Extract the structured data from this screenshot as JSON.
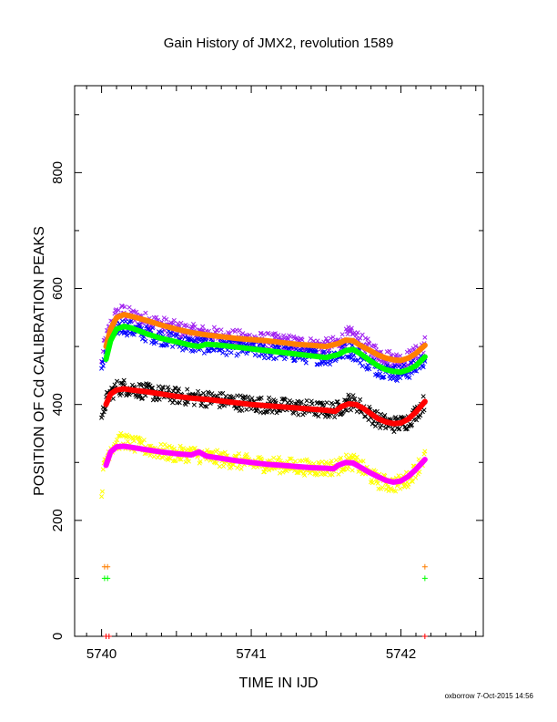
{
  "chart_data": {
    "type": "scatter",
    "title": "Gain History of JMX2, revolution 1589",
    "xlabel": "TIME IN IJD",
    "ylabel": "POSITION OF Cd CALIBRATION PEAKS",
    "xlim": [
      5739.82,
      5742.55
    ],
    "ylim": [
      0,
      950
    ],
    "x_ticks": [
      {
        "v": 5740,
        "label": "5740"
      },
      {
        "v": 5741,
        "label": "5741"
      },
      {
        "v": 5742,
        "label": "5742"
      }
    ],
    "y_ticks": [
      {
        "v": 0,
        "label": "0"
      },
      {
        "v": 200,
        "label": "200"
      },
      {
        "v": 400,
        "label": "400"
      },
      {
        "v": 600,
        "label": "600"
      },
      {
        "v": 800,
        "label": "800"
      }
    ],
    "grid": false,
    "legend": "none",
    "scatter_series": [
      {
        "color": "#a020f0",
        "marker": "x",
        "spread": 14,
        "offset": 0,
        "x": [
          5740.0,
          5740.02,
          5740.06,
          5740.1,
          5740.15,
          5740.2,
          5740.3,
          5740.4,
          5740.5,
          5740.6,
          5740.7,
          5740.8,
          5740.9,
          5741.0,
          5741.1,
          5741.2,
          5741.3,
          5741.4,
          5741.5,
          5741.58,
          5741.65,
          5741.7,
          5741.75,
          5741.8,
          5741.85,
          5741.9,
          5741.95,
          5742.0,
          5742.05,
          5742.1,
          5742.16
        ],
        "y": [
          470,
          505,
          535,
          555,
          560,
          552,
          545,
          538,
          530,
          525,
          522,
          518,
          515,
          512,
          510,
          508,
          505,
          502,
          500,
          505,
          520,
          515,
          505,
          495,
          488,
          482,
          478,
          476,
          480,
          488,
          505
        ]
      },
      {
        "color": "#0000ff",
        "marker": "x",
        "spread": 14,
        "offset": 0,
        "x": [
          5740.0,
          5740.02,
          5740.06,
          5740.1,
          5740.15,
          5740.2,
          5740.3,
          5740.4,
          5740.5,
          5740.6,
          5740.7,
          5740.8,
          5740.9,
          5741.0,
          5741.1,
          5741.2,
          5741.3,
          5741.4,
          5741.5,
          5741.58,
          5741.65,
          5741.7,
          5741.75,
          5741.8,
          5741.85,
          5741.9,
          5741.95,
          5742.0,
          5742.05,
          5742.1,
          5742.16
        ],
        "y": [
          455,
          485,
          515,
          532,
          535,
          530,
          522,
          516,
          510,
          503,
          502,
          500,
          498,
          496,
          492,
          490,
          487,
          484,
          481,
          486,
          495,
          488,
          478,
          468,
          462,
          458,
          455,
          454,
          458,
          465,
          480
        ]
      },
      {
        "color": "#000000",
        "marker": "x",
        "spread": 14,
        "offset": 0,
        "x": [
          5740.0,
          5740.02,
          5740.06,
          5740.1,
          5740.15,
          5740.2,
          5740.3,
          5740.4,
          5740.5,
          5740.6,
          5740.7,
          5740.8,
          5740.9,
          5741.0,
          5741.1,
          5741.2,
          5741.3,
          5741.4,
          5741.5,
          5741.58,
          5741.65,
          5741.7,
          5741.75,
          5741.8,
          5741.85,
          5741.9,
          5741.95,
          5742.0,
          5742.05,
          5742.1,
          5742.16
        ],
        "y": [
          365,
          400,
          420,
          428,
          430,
          427,
          422,
          418,
          415,
          412,
          410,
          407,
          404,
          401,
          399,
          397,
          395,
          393,
          390,
          392,
          405,
          402,
          392,
          382,
          373,
          368,
          366,
          367,
          372,
          385,
          405
        ]
      },
      {
        "color": "#ffff00",
        "marker": "x",
        "spread": 14,
        "offset": 0,
        "x": [
          5740.0,
          5740.02,
          5740.06,
          5740.1,
          5740.15,
          5740.2,
          5740.3,
          5740.4,
          5740.5,
          5740.6,
          5740.7,
          5740.8,
          5740.9,
          5741.0,
          5741.1,
          5741.2,
          5741.3,
          5741.4,
          5741.5,
          5741.58,
          5741.65,
          5741.7,
          5741.75,
          5741.8,
          5741.85,
          5741.9,
          5741.95,
          5742.0,
          5742.05,
          5742.1,
          5742.16
        ],
        "y": [
          250,
          300,
          325,
          335,
          338,
          332,
          325,
          318,
          314,
          315,
          310,
          306,
          302,
          299,
          297,
          295,
          293,
          291,
          290,
          293,
          302,
          298,
          288,
          277,
          268,
          264,
          262,
          265,
          272,
          288,
          310
        ]
      },
      {
        "color": "#ff7f00",
        "marker": "+",
        "spread": 0,
        "offset": 0,
        "x": [
          5740.02,
          5740.04,
          5742.16
        ],
        "y": [
          120,
          120,
          120
        ]
      },
      {
        "color": "#00ff00",
        "marker": "+",
        "spread": 0,
        "offset": 0,
        "x": [
          5740.02,
          5740.04,
          5742.16
        ],
        "y": [
          100,
          100,
          100
        ]
      },
      {
        "color": "#ff0000",
        "marker": "+",
        "spread": 0,
        "offset": 0,
        "x": [
          5740.03,
          5740.05,
          5742.16
        ],
        "y": [
          0,
          0,
          0
        ]
      }
    ],
    "curves": [
      {
        "color": "#ff7f00",
        "x": [
          5740.03,
          5740.06,
          5740.1,
          5740.15,
          5740.2,
          5740.3,
          5740.4,
          5740.5,
          5740.6,
          5740.7,
          5740.8,
          5740.9,
          5741.0,
          5741.1,
          5741.2,
          5741.3,
          5741.4,
          5741.5,
          5741.58,
          5741.63,
          5741.68,
          5741.72,
          5741.78,
          5741.85,
          5741.9,
          5741.95,
          5742.0,
          5742.05,
          5742.1,
          5742.16
        ],
        "y": [
          500,
          530,
          550,
          555,
          552,
          545,
          537,
          530,
          524,
          520,
          517,
          514,
          512,
          510,
          507,
          504,
          502,
          500,
          505,
          511,
          510,
          503,
          495,
          485,
          480,
          477,
          476,
          480,
          488,
          502
        ]
      },
      {
        "color": "#00ff00",
        "x": [
          5740.03,
          5740.06,
          5740.1,
          5740.15,
          5740.2,
          5740.3,
          5740.4,
          5740.5,
          5740.6,
          5740.65,
          5740.7,
          5740.8,
          5740.9,
          5741.0,
          5741.1,
          5741.2,
          5741.3,
          5741.4,
          5741.5,
          5741.58,
          5741.63,
          5741.68,
          5741.72,
          5741.78,
          5741.85,
          5741.9,
          5741.95,
          5742.0,
          5742.05,
          5742.1,
          5742.16
        ],
        "y": [
          478,
          510,
          530,
          535,
          532,
          522,
          514,
          508,
          502,
          500,
          504,
          502,
          499,
          496,
          493,
          490,
          487,
          484,
          481,
          486,
          493,
          495,
          489,
          478,
          466,
          460,
          457,
          456,
          460,
          467,
          482
        ]
      },
      {
        "color": "#ff0000",
        "x": [
          5740.03,
          5740.06,
          5740.1,
          5740.15,
          5740.2,
          5740.3,
          5740.4,
          5740.5,
          5740.6,
          5740.7,
          5740.8,
          5740.9,
          5741.0,
          5741.1,
          5741.2,
          5741.3,
          5741.4,
          5741.5,
          5741.56,
          5741.6,
          5741.65,
          5741.7,
          5741.75,
          5741.8,
          5741.85,
          5741.9,
          5741.95,
          5742.0,
          5742.05,
          5742.1,
          5742.16
        ],
        "y": [
          400,
          418,
          425,
          427,
          425,
          422,
          418,
          414,
          411,
          409,
          406,
          403,
          400,
          398,
          396,
          394,
          392,
          390,
          388,
          396,
          401,
          400,
          393,
          384,
          375,
          370,
          367,
          368,
          375,
          387,
          405
        ]
      },
      {
        "color": "#ff00ff",
        "x": [
          5740.03,
          5740.06,
          5740.1,
          5740.15,
          5740.2,
          5740.3,
          5740.4,
          5740.5,
          5740.6,
          5740.65,
          5740.7,
          5740.8,
          5740.9,
          5741.0,
          5741.1,
          5741.2,
          5741.3,
          5741.4,
          5741.5,
          5741.55,
          5741.58,
          5741.63,
          5741.68,
          5741.72,
          5741.78,
          5741.85,
          5741.9,
          5741.95,
          5742.0,
          5742.05,
          5742.1,
          5742.16
        ],
        "y": [
          295,
          318,
          327,
          328,
          326,
          322,
          318,
          315,
          313,
          318,
          311,
          307,
          303,
          300,
          297,
          295,
          293,
          291,
          290,
          289,
          295,
          300,
          299,
          293,
          284,
          275,
          269,
          266,
          268,
          276,
          288,
          305
        ]
      }
    ]
  },
  "footer": "oxborrow  7-Oct-2015 14:56"
}
